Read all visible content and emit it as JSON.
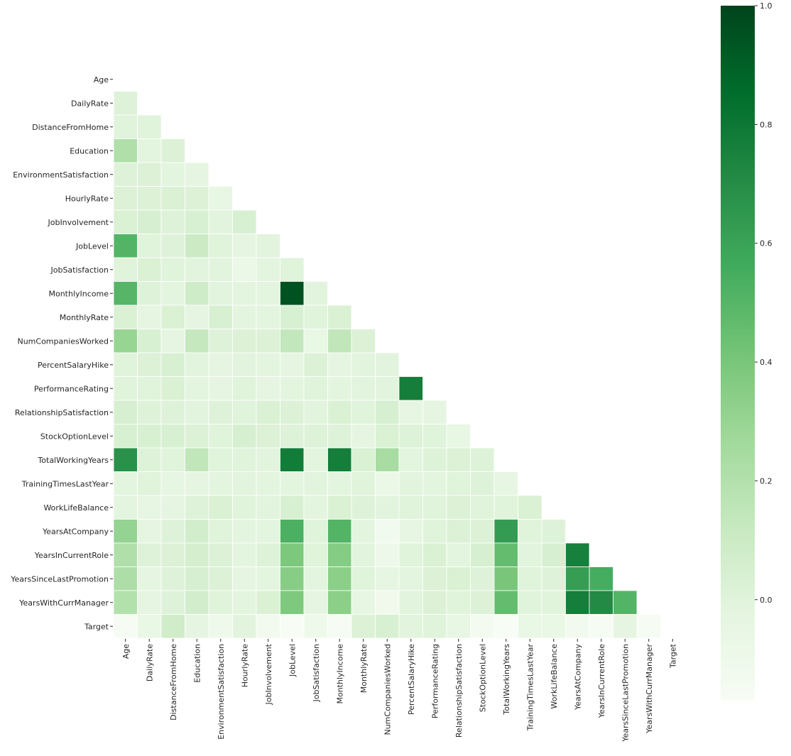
{
  "chart_data": {
    "type": "heatmap",
    "mask": "upper-triangle-including-diagonal",
    "labels": [
      "Age",
      "DailyRate",
      "DistanceFromHome",
      "Education",
      "EnvironmentSatisfaction",
      "HourlyRate",
      "JobInvolvement",
      "JobLevel",
      "JobSatisfaction",
      "MonthlyIncome",
      "MonthlyRate",
      "NumCompaniesWorked",
      "PercentSalaryHike",
      "PerformanceRating",
      "RelationshipSatisfaction",
      "StockOptionLevel",
      "TotalWorkingYears",
      "TrainingTimesLastYear",
      "WorkLifeBalance",
      "YearsAtCompany",
      "YearsInCurrentRole",
      "YearsSinceLastPromotion",
      "YearsWithCurrManager",
      "Target"
    ],
    "values": [
      [
        null,
        null,
        null,
        null,
        null,
        null,
        null,
        null,
        null,
        null,
        null,
        null,
        null,
        null,
        null,
        null,
        null,
        null,
        null,
        null,
        null,
        null,
        null,
        null
      ],
      [
        0.01,
        null,
        null,
        null,
        null,
        null,
        null,
        null,
        null,
        null,
        null,
        null,
        null,
        null,
        null,
        null,
        null,
        null,
        null,
        null,
        null,
        null,
        null,
        null
      ],
      [
        0.0,
        0.0,
        null,
        null,
        null,
        null,
        null,
        null,
        null,
        null,
        null,
        null,
        null,
        null,
        null,
        null,
        null,
        null,
        null,
        null,
        null,
        null,
        null,
        null
      ],
      [
        0.21,
        -0.02,
        0.02,
        null,
        null,
        null,
        null,
        null,
        null,
        null,
        null,
        null,
        null,
        null,
        null,
        null,
        null,
        null,
        null,
        null,
        null,
        null,
        null,
        null
      ],
      [
        0.01,
        0.02,
        -0.02,
        -0.03,
        null,
        null,
        null,
        null,
        null,
        null,
        null,
        null,
        null,
        null,
        null,
        null,
        null,
        null,
        null,
        null,
        null,
        null,
        null,
        null
      ],
      [
        0.02,
        0.02,
        0.03,
        0.02,
        -0.05,
        null,
        null,
        null,
        null,
        null,
        null,
        null,
        null,
        null,
        null,
        null,
        null,
        null,
        null,
        null,
        null,
        null,
        null,
        null
      ],
      [
        0.03,
        0.05,
        0.01,
        0.04,
        -0.01,
        0.04,
        null,
        null,
        null,
        null,
        null,
        null,
        null,
        null,
        null,
        null,
        null,
        null,
        null,
        null,
        null,
        null,
        null,
        null
      ],
      [
        0.51,
        0.0,
        0.01,
        0.1,
        0.0,
        -0.03,
        -0.01,
        null,
        null,
        null,
        null,
        null,
        null,
        null,
        null,
        null,
        null,
        null,
        null,
        null,
        null,
        null,
        null,
        null
      ],
      [
        0.0,
        0.03,
        -0.0,
        -0.01,
        -0.01,
        -0.07,
        -0.02,
        -0.0,
        null,
        null,
        null,
        null,
        null,
        null,
        null,
        null,
        null,
        null,
        null,
        null,
        null,
        null,
        null,
        null
      ],
      [
        0.5,
        0.01,
        -0.02,
        0.09,
        -0.01,
        -0.02,
        -0.02,
        0.95,
        -0.01,
        null,
        null,
        null,
        null,
        null,
        null,
        null,
        null,
        null,
        null,
        null,
        null,
        null,
        null,
        null
      ],
      [
        0.03,
        -0.03,
        0.03,
        -0.03,
        0.04,
        -0.02,
        -0.02,
        0.04,
        0.0,
        0.03,
        null,
        null,
        null,
        null,
        null,
        null,
        null,
        null,
        null,
        null,
        null,
        null,
        null,
        null
      ],
      [
        0.3,
        0.04,
        -0.03,
        0.13,
        0.01,
        0.02,
        0.02,
        0.14,
        -0.06,
        0.15,
        0.02,
        null,
        null,
        null,
        null,
        null,
        null,
        null,
        null,
        null,
        null,
        null,
        null,
        null
      ],
      [
        0.0,
        0.02,
        0.04,
        -0.01,
        -0.03,
        -0.01,
        -0.02,
        -0.03,
        0.02,
        -0.03,
        -0.01,
        -0.01,
        null,
        null,
        null,
        null,
        null,
        null,
        null,
        null,
        null,
        null,
        null,
        null
      ],
      [
        0.0,
        0.0,
        0.03,
        -0.02,
        -0.03,
        -0.0,
        -0.03,
        -0.02,
        0.0,
        -0.02,
        -0.01,
        -0.01,
        0.77,
        null,
        null,
        null,
        null,
        null,
        null,
        null,
        null,
        null,
        null,
        null
      ],
      [
        0.05,
        0.01,
        0.01,
        -0.01,
        0.01,
        0.0,
        0.03,
        0.02,
        -0.01,
        0.03,
        -0.0,
        0.05,
        -0.04,
        -0.03,
        null,
        null,
        null,
        null,
        null,
        null,
        null,
        null,
        null,
        null
      ],
      [
        0.04,
        0.04,
        0.04,
        0.02,
        0.0,
        0.05,
        0.02,
        0.01,
        0.01,
        0.01,
        -0.03,
        0.03,
        0.01,
        0.0,
        -0.05,
        null,
        null,
        null,
        null,
        null,
        null,
        null,
        null,
        null
      ],
      [
        0.68,
        0.01,
        0.0,
        0.15,
        -0.0,
        -0.0,
        -0.01,
        0.78,
        -0.02,
        0.77,
        0.03,
        0.24,
        -0.02,
        0.01,
        0.02,
        0.01,
        null,
        null,
        null,
        null,
        null,
        null,
        null,
        null
      ],
      [
        -0.02,
        0.0,
        -0.04,
        -0.03,
        -0.02,
        -0.01,
        -0.02,
        -0.02,
        -0.01,
        -0.02,
        0.0,
        -0.07,
        -0.01,
        -0.02,
        0.0,
        0.01,
        -0.04,
        null,
        null,
        null,
        null,
        null,
        null,
        null
      ],
      [
        -0.02,
        -0.04,
        -0.03,
        0.01,
        0.03,
        -0.0,
        -0.01,
        0.04,
        -0.02,
        0.03,
        0.01,
        -0.01,
        -0.0,
        0.0,
        0.02,
        0.0,
        0.0,
        0.03,
        null,
        null,
        null,
        null,
        null,
        null
      ],
      [
        0.31,
        -0.03,
        0.01,
        0.07,
        0.0,
        -0.02,
        -0.02,
        0.53,
        -0.0,
        0.51,
        -0.02,
        -0.12,
        -0.04,
        0.0,
        0.02,
        0.02,
        0.63,
        0.0,
        0.01,
        null,
        null,
        null,
        null,
        null
      ],
      [
        0.21,
        0.01,
        0.02,
        0.06,
        0.02,
        -0.02,
        0.01,
        0.39,
        -0.0,
        0.36,
        -0.01,
        -0.09,
        -0.0,
        0.03,
        -0.02,
        0.05,
        0.46,
        -0.01,
        0.05,
        0.76,
        null,
        null,
        null,
        null
      ],
      [
        0.22,
        -0.03,
        0.01,
        0.05,
        0.02,
        -0.03,
        -0.02,
        0.35,
        -0.02,
        0.34,
        0.0,
        -0.04,
        -0.02,
        0.02,
        0.03,
        0.01,
        0.4,
        -0.0,
        0.01,
        0.62,
        0.55,
        null,
        null,
        null
      ],
      [
        0.2,
        -0.03,
        0.01,
        0.07,
        -0.0,
        -0.02,
        0.03,
        0.38,
        -0.03,
        0.34,
        -0.04,
        -0.11,
        -0.01,
        0.02,
        -0.0,
        0.02,
        0.46,
        -0.0,
        0.0,
        0.77,
        0.71,
        0.51,
        null,
        null
      ],
      [
        -0.16,
        -0.06,
        0.08,
        -0.03,
        -0.1,
        -0.01,
        -0.13,
        -0.17,
        -0.1,
        -0.16,
        0.02,
        0.04,
        -0.01,
        0.0,
        -0.05,
        -0.14,
        -0.17,
        -0.06,
        -0.06,
        -0.13,
        -0.16,
        -0.03,
        -0.16,
        null
      ]
    ],
    "colorscale": "Greens",
    "vmin": -0.17,
    "vmax": 1.0,
    "colorbar_ticks": [
      0.0,
      0.2,
      0.4,
      0.6,
      0.8,
      1.0
    ],
    "grid_line_color": "#ffffff"
  }
}
